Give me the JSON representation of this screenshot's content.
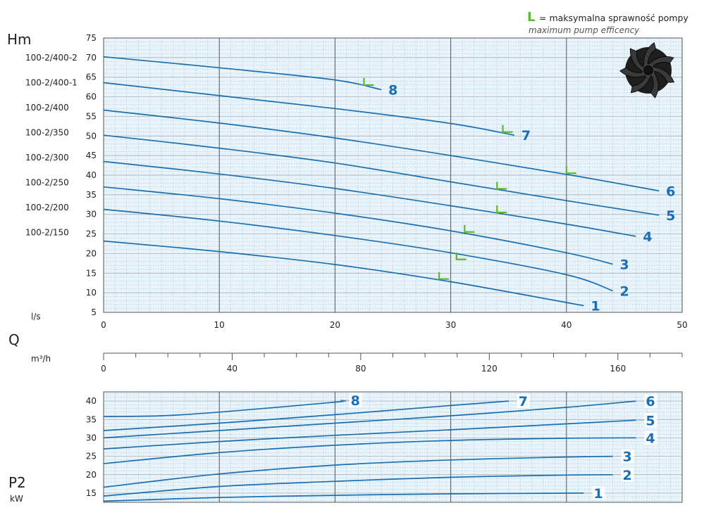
{
  "legend": {
    "symbol": "L",
    "line1": "= maksymalna sprawność pompy",
    "line2": "maximum pump efficency",
    "symbol_color": "#5cb82e"
  },
  "colors": {
    "curve": "#1a6fb3",
    "grid_bg": "#e8f3fa",
    "minor_grid": "#9ec3d6",
    "major_grid": "#555555"
  },
  "icon": "impeller-icon",
  "head_chart": {
    "ylabel": "Hm",
    "model_labels": [
      "100-2/400-2",
      "100-2/400-1",
      "100-2/400",
      "100-2/350",
      "100-2/300",
      "100-2/250",
      "100-2/200",
      "100-2/150"
    ],
    "x_unit_label": "l/s",
    "x_ticks": [
      "0",
      "10",
      "20",
      "30",
      "40",
      "50"
    ],
    "y_ticks": [
      "5",
      "10",
      "15",
      "20",
      "25",
      "30",
      "35",
      "40",
      "45",
      "50",
      "55",
      "60",
      "65",
      "70",
      "75"
    ]
  },
  "flow_axis": {
    "label": "Q",
    "unit": "m³/h",
    "ticks": [
      "0",
      "40",
      "80",
      "120",
      "160"
    ]
  },
  "power_chart": {
    "label": "P2",
    "unit": "kW",
    "y_ticks": [
      "15",
      "20",
      "25",
      "30",
      "35",
      "40"
    ]
  },
  "chart_data": [
    {
      "type": "line",
      "xlabel": "l/s",
      "ylabel": "Hm",
      "xlim": [
        0,
        50
      ],
      "ylim": [
        5,
        75
      ],
      "grid": true,
      "series": [
        {
          "name": "1",
          "x": [
            0,
            10,
            20,
            30,
            41.5
          ],
          "y": [
            23.2,
            20.5,
            17.2,
            12.8,
            6.7
          ],
          "bep": [
            29,
            13.5
          ]
        },
        {
          "name": "2",
          "x": [
            0,
            10,
            20,
            30,
            40,
            44
          ],
          "y": [
            31.3,
            28.3,
            24.6,
            20.2,
            14.6,
            10.5
          ],
          "bep": [
            30.5,
            18.5
          ]
        },
        {
          "name": "3",
          "x": [
            0,
            10,
            20,
            30,
            40,
            44
          ],
          "y": [
            37.0,
            34.0,
            30.3,
            25.8,
            20.2,
            17.3
          ],
          "bep": [
            31.2,
            25.5
          ]
        },
        {
          "name": "4",
          "x": [
            0,
            10,
            20,
            30,
            40,
            46
          ],
          "y": [
            43.5,
            40.3,
            36.6,
            32.2,
            27.5,
            24.4
          ],
          "bep": [
            34,
            30.5
          ]
        },
        {
          "name": "5",
          "x": [
            0,
            10,
            20,
            30,
            40,
            48
          ],
          "y": [
            50.2,
            46.9,
            43.1,
            38.3,
            33.5,
            29.8
          ],
          "bep": [
            34,
            36.5
          ]
        },
        {
          "name": "6",
          "x": [
            0,
            10,
            20,
            30,
            40,
            48
          ],
          "y": [
            56.6,
            53.3,
            49.5,
            45.0,
            40.2,
            36.0
          ],
          "bep": [
            40,
            40.5
          ]
        },
        {
          "name": "7",
          "x": [
            0,
            10,
            20,
            30,
            35.5
          ],
          "y": [
            63.6,
            60.3,
            57.0,
            53.2,
            50.2
          ],
          "bep": [
            34.5,
            51
          ]
        },
        {
          "name": "8",
          "x": [
            0,
            10,
            20,
            24
          ],
          "y": [
            70.2,
            67.4,
            64.3,
            61.8
          ],
          "bep": [
            22.5,
            63
          ]
        }
      ]
    },
    {
      "type": "line",
      "xlabel": "m³/h",
      "xlim": [
        0,
        180
      ],
      "x_ticks": [
        0,
        40,
        80,
        120,
        160
      ]
    },
    {
      "type": "line",
      "xlabel": "l/s",
      "ylabel": "P2 kW",
      "xlim": [
        0,
        50
      ],
      "ylim": [
        12.5,
        42.5
      ],
      "grid": true,
      "series": [
        {
          "name": "1",
          "x": [
            0,
            10,
            20,
            30,
            41.5
          ],
          "y": [
            12.8,
            13.8,
            14.4,
            14.8,
            15.0
          ]
        },
        {
          "name": "2",
          "x": [
            0,
            10,
            20,
            30,
            40,
            44
          ],
          "y": [
            14.2,
            16.8,
            18.2,
            19.3,
            19.9,
            20.0
          ]
        },
        {
          "name": "3",
          "x": [
            0,
            10,
            20,
            30,
            40,
            44
          ],
          "y": [
            16.6,
            20.2,
            22.6,
            24.0,
            24.8,
            25.0
          ]
        },
        {
          "name": "4",
          "x": [
            0,
            10,
            20,
            30,
            40,
            46
          ],
          "y": [
            23.0,
            26.0,
            28.0,
            29.3,
            29.9,
            30.0
          ]
        },
        {
          "name": "5",
          "x": [
            0,
            10,
            20,
            30,
            40,
            46
          ],
          "y": [
            27.0,
            29.0,
            30.7,
            32.2,
            33.8,
            34.8
          ]
        },
        {
          "name": "6",
          "x": [
            0,
            10,
            20,
            30,
            40,
            46
          ],
          "y": [
            30.0,
            32.0,
            34.0,
            36.0,
            38.3,
            40.0
          ]
        },
        {
          "name": "7",
          "x": [
            0,
            10,
            20,
            30,
            35
          ],
          "y": [
            32.0,
            34.0,
            36.3,
            38.8,
            40.0
          ]
        },
        {
          "name": "8",
          "x": [
            0,
            5,
            10,
            20,
            20.5
          ],
          "y": [
            35.8,
            36.0,
            37.0,
            39.7,
            40.2
          ]
        }
      ]
    }
  ]
}
